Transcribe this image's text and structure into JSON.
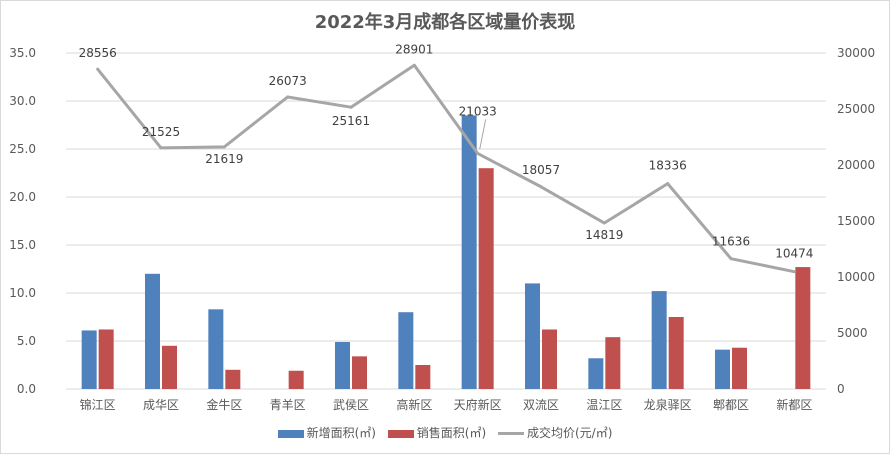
{
  "chart_data": {
    "type": "bar",
    "title": "2022年3月成都各区域量价表现",
    "categories": [
      "锦江区",
      "成华区",
      "金牛区",
      "青羊区",
      "武侯区",
      "高新区",
      "天府新区",
      "双流区",
      "温江区",
      "龙泉驿区",
      "郫都区",
      "新都区"
    ],
    "series": [
      {
        "name": "新增面积(㎡)",
        "type": "bar",
        "axis": "left",
        "color": "#4f81bd",
        "values": [
          6.1,
          12.0,
          8.3,
          0,
          4.9,
          8.0,
          28.5,
          11.0,
          3.2,
          10.2,
          4.1,
          0
        ]
      },
      {
        "name": "销售面积(㎡)",
        "type": "bar",
        "axis": "left",
        "color": "#c0504d",
        "values": [
          6.2,
          4.5,
          2.0,
          1.9,
          3.4,
          2.5,
          23.0,
          6.2,
          5.4,
          7.5,
          4.3,
          12.7
        ]
      },
      {
        "name": "成交均价(元/㎡)",
        "type": "line",
        "axis": "right",
        "color": "#a6a6a6",
        "values": [
          28556,
          21525,
          21619,
          26073,
          25161,
          28901,
          21033,
          18057,
          14819,
          18336,
          11636,
          10474
        ],
        "labels": [
          "28556",
          "21525",
          "21619",
          "26073",
          "25161",
          "28901",
          "21033",
          "18057",
          "14819",
          "18336",
          "11636",
          "10474"
        ]
      }
    ],
    "y_left": {
      "min": 0,
      "max": 35,
      "step": 5,
      "ticks": [
        "0.0",
        "5.0",
        "10.0",
        "15.0",
        "20.0",
        "25.0",
        "30.0",
        "35.0"
      ]
    },
    "y_right": {
      "min": 0,
      "max": 30000,
      "step": 5000,
      "ticks": [
        "0",
        "5000",
        "10000",
        "15000",
        "20000",
        "25000",
        "30000"
      ]
    },
    "grid": true,
    "legend_position": "bottom"
  }
}
